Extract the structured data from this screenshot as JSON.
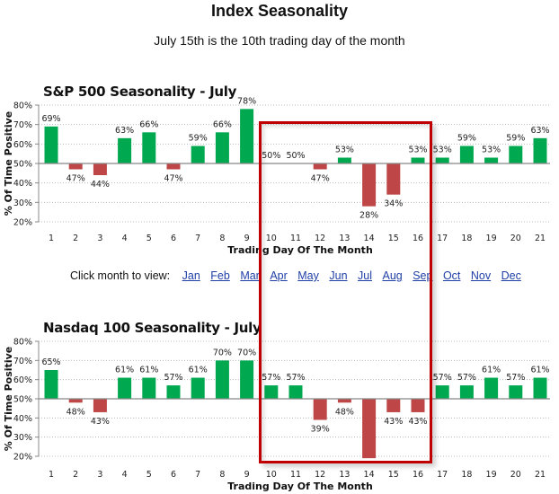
{
  "header": {
    "title": "Index Seasonality",
    "subtitle": "July 15th is the 10th trading day of the month"
  },
  "month_nav": {
    "label": "Click month to view:",
    "months": [
      "Jan",
      "Feb",
      "Mar",
      "Apr",
      "May",
      "Jun",
      "Jul",
      "Aug",
      "Sep",
      "Oct",
      "Nov",
      "Dec"
    ]
  },
  "colors": {
    "positive": "#00a84f",
    "negative": "#bf4646",
    "highlight_box": "#c00000",
    "link": "#1f3fa6"
  },
  "chart_data": [
    {
      "type": "bar",
      "title": "S&P 500 Seasonality - July",
      "xlabel": "Trading Day Of The Month",
      "ylabel": "% Of Time Positive",
      "baseline": 50,
      "ylim": [
        20,
        80
      ],
      "yticks": [
        "20%",
        "30%",
        "40%",
        "50%",
        "60%",
        "70%",
        "80%"
      ],
      "grid": true,
      "categories": [
        "1",
        "2",
        "3",
        "4",
        "5",
        "6",
        "7",
        "8",
        "9",
        "10",
        "11",
        "12",
        "13",
        "14",
        "15",
        "16",
        "17",
        "18",
        "19",
        "20",
        "21"
      ],
      "values": [
        69,
        47,
        44,
        63,
        66,
        47,
        59,
        66,
        78,
        50,
        50,
        47,
        53,
        28,
        34,
        53,
        53,
        59,
        53,
        59,
        63
      ],
      "labels": [
        "69%",
        "47%",
        "44%",
        "63%",
        "66%",
        "47%",
        "59%",
        "66%",
        "78%",
        "50%",
        "50%",
        "47%",
        "53%",
        "28%",
        "34%",
        "53%",
        "53%",
        "59%",
        "53%",
        "59%",
        "63%"
      ],
      "highlighted_days": [
        10,
        16
      ]
    },
    {
      "type": "bar",
      "title": "Nasdaq 100 Seasonality - July",
      "xlabel": "Trading Day Of The Month",
      "ylabel": "% Of Time Positive",
      "baseline": 50,
      "ylim": [
        20,
        80
      ],
      "yticks": [
        "20%",
        "30%",
        "40%",
        "50%",
        "60%",
        "70%",
        "80%"
      ],
      "grid": true,
      "categories": [
        "1",
        "2",
        "3",
        "4",
        "5",
        "6",
        "7",
        "8",
        "9",
        "10",
        "11",
        "12",
        "13",
        "14",
        "15",
        "16",
        "17",
        "18",
        "19",
        "20",
        "21"
      ],
      "values": [
        65,
        48,
        43,
        61,
        61,
        57,
        61,
        70,
        70,
        57,
        57,
        39,
        48,
        19,
        43,
        43,
        57,
        57,
        61,
        57,
        61
      ],
      "labels": [
        "65%",
        "48%",
        "43%",
        "61%",
        "61%",
        "57%",
        "61%",
        "70%",
        "70%",
        "57%",
        "57%",
        "39%",
        "48%",
        "",
        "43%",
        "43%",
        "57%",
        "57%",
        "61%",
        "57%",
        "61%"
      ],
      "highlighted_days": [
        10,
        16
      ]
    }
  ]
}
